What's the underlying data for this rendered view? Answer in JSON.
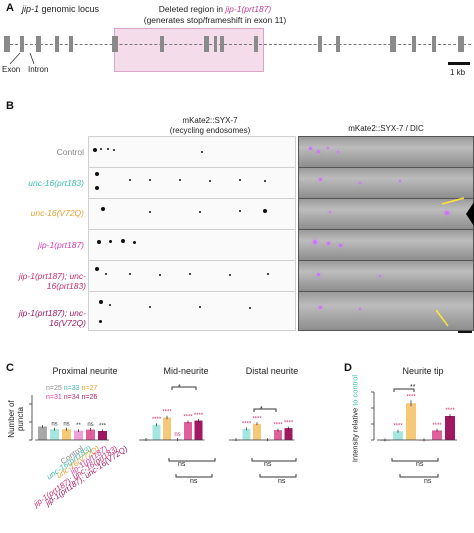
{
  "panelA": {
    "letter": "A",
    "title_prefix": "jip-1",
    "title_suffix": " genomic locus",
    "deleted_label": "Deleted region in ",
    "deleted_allele": "jip-1(prt187)",
    "deleted_sub": "(generates stop/frameshift in exon 11)",
    "exon_label": "Exon",
    "intron_label": "Intron",
    "scale_label": "1 kb"
  },
  "panelB": {
    "letter": "B",
    "col1_title": "mKate2::SYX-7",
    "col1_sub": "(recycling endosomes)",
    "col2_title": "mKate2::SYX-7 / DIC",
    "rows": [
      {
        "label": "Control",
        "color": "#888888"
      },
      {
        "label": "unc-16(prt183)",
        "color": "#3fbfb0"
      },
      {
        "label": "unc-16(V72Q)",
        "color": "#e8a030"
      },
      {
        "label": "jip-1(prt187)",
        "color": "#d040b0"
      },
      {
        "label": "jip-1(prt187); unc-16(prt183)",
        "color": "#c83070"
      },
      {
        "label": "jip-1(prt187); unc-16(V72Q)",
        "color": "#a01860"
      }
    ]
  },
  "panelC": {
    "letter": "C",
    "ylabel": "Number of puncta",
    "titles": [
      "Proximal neurite",
      "Mid-neurite",
      "Distal neurite"
    ],
    "n_line1": [
      "n=25",
      "n=33",
      "n=27"
    ],
    "n_line2": [
      "n=31",
      "n=34",
      "n=26"
    ],
    "n_colors1": [
      "#888888",
      "#3fbfb0",
      "#e8a030"
    ],
    "n_colors2": [
      "#d040b0",
      "#c83070",
      "#a01860"
    ],
    "xlabels": [
      {
        "text": "Control",
        "color": "#888888"
      },
      {
        "text": "unc-16(prt183)",
        "color": "#3fbfb0"
      },
      {
        "text": "unc-16(V72Q)",
        "color": "#e8a030"
      },
      {
        "text": "jip-1(prt187)",
        "color": "#d040b0"
      },
      {
        "text": "jip-1(prt187); unc-16(prt183)",
        "color": "#c83070"
      },
      {
        "text": "jip-1(prt187); unc-16(V72Q)",
        "color": "#a01860"
      }
    ],
    "prox_sig": [
      "ns",
      "ns",
      "**",
      "ns",
      "***"
    ],
    "mid_sig": [
      "****",
      "****",
      "ns",
      "****",
      "****"
    ],
    "dist_sig": [
      "****",
      "****",
      "****",
      "****"
    ],
    "bracket_star": "*",
    "ns": "ns"
  },
  "panelD": {
    "letter": "D",
    "title": "Neurite tip",
    "ylabel_prefix": "Intensity relative",
    "ylabel_suffix": "to control",
    "sig": [
      "****",
      "****",
      "****",
      "****"
    ],
    "bracket_star": "**",
    "ns": "ns"
  },
  "chart_data": [
    {
      "type": "bar",
      "title": "Proximal neurite",
      "ylabel": "Number of puncta",
      "ylim": [
        0,
        25
      ],
      "categories": [
        "Control",
        "unc-16(prt183)",
        "unc-16(V72Q)",
        "jip-1(prt187)",
        "jip-1(prt187); unc-16(prt183)",
        "jip-1(prt187); unc-16(V72Q)"
      ],
      "values": [
        7.5,
        6.0,
        6.0,
        5.2,
        5.8,
        5.0
      ],
      "colors": [
        "#a8a8a8",
        "#a6e6e0",
        "#f6c978",
        "#f0a0d8",
        "#e0609a",
        "#a01860"
      ]
    },
    {
      "type": "bar",
      "title": "Mid-neurite",
      "ylim": [
        0,
        25
      ],
      "categories": [
        "Control",
        "unc-16(prt183)",
        "unc-16(V72Q)",
        "jip-1(prt187)",
        "jip-1(prt187); unc-16(prt183)",
        "jip-1(prt187); unc-16(V72Q)"
      ],
      "values": [
        0.3,
        8.5,
        12.5,
        0.3,
        10.0,
        10.8
      ],
      "colors": [
        "#a8a8a8",
        "#a6e6e0",
        "#f6c978",
        "#f0a0d8",
        "#e0609a",
        "#a01860"
      ]
    },
    {
      "type": "bar",
      "title": "Distal neurite",
      "ylim": [
        0,
        25
      ],
      "categories": [
        "Control",
        "unc-16(prt183)",
        "unc-16(V72Q)",
        "jip-1(prt187)",
        "jip-1(prt187); unc-16(prt183)",
        "jip-1(prt187); unc-16(V72Q)"
      ],
      "values": [
        0.2,
        6.2,
        9.0,
        0.2,
        5.5,
        6.6
      ],
      "colors": [
        "#a8a8a8",
        "#a6e6e0",
        "#f6c978",
        "#f0a0d8",
        "#e0609a",
        "#a01860"
      ]
    },
    {
      "type": "bar",
      "title": "Neurite tip",
      "ylabel": "Intensity relative to control",
      "ylim": [
        0,
        300
      ],
      "categories": [
        "Control",
        "unc-16(prt183)",
        "unc-16(V72Q)",
        "jip-1(prt187)",
        "jip-1(prt187); unc-16(prt183)",
        "jip-1(prt187); unc-16(V72Q)"
      ],
      "values": [
        1,
        55,
        230,
        1,
        60,
        150
      ],
      "colors": [
        "#a8a8a8",
        "#a6e6e0",
        "#f6c978",
        "#f0a0d8",
        "#e0609a",
        "#a01860"
      ]
    }
  ]
}
